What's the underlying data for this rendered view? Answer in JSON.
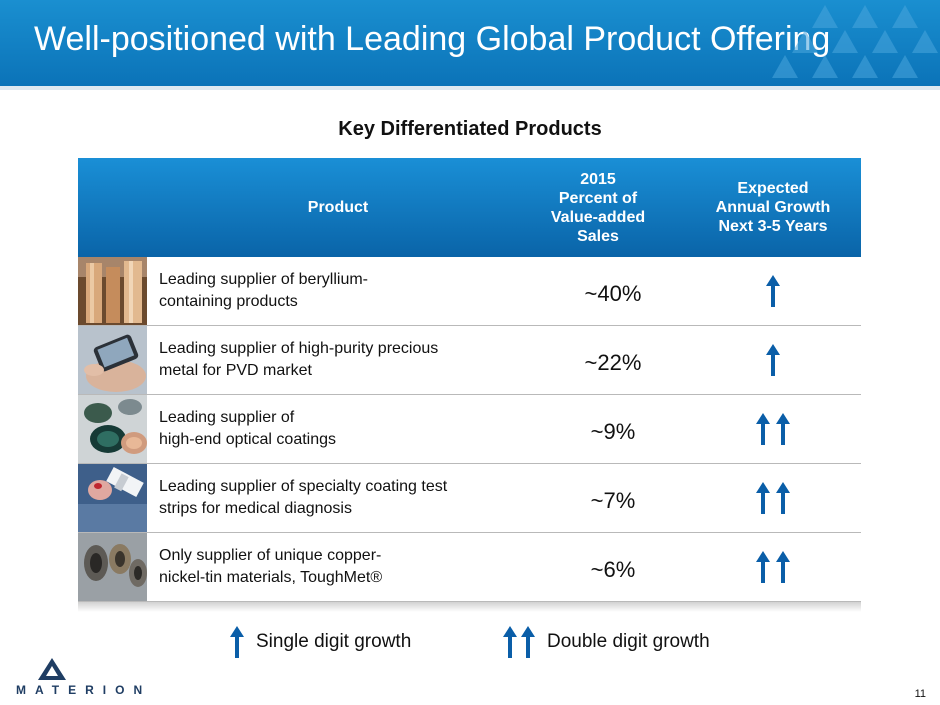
{
  "header": {
    "title": "Well-positioned with Leading Global Product Offering"
  },
  "subtitle": "Key Differentiated Products",
  "table": {
    "headers": {
      "product": "Product",
      "percent": "2015\nPercent of\nValue-added\nSales",
      "growth": "Expected\nAnnual Growth\nNext 3-5 Years"
    },
    "rows": [
      {
        "description": "Leading supplier of beryllium-\ncontaining products",
        "percent": "~40%",
        "growth": "single",
        "thumb": "beryllium-rods-image"
      },
      {
        "description": "Leading supplier of high-purity precious\nmetal for PVD market",
        "percent": "~22%",
        "growth": "single",
        "thumb": "smartphone-hand-image"
      },
      {
        "description": "Leading supplier of\nhigh-end optical coatings",
        "percent": "~9%",
        "growth": "double",
        "thumb": "optical-lenses-image"
      },
      {
        "description": "Leading supplier of specialty coating test\nstrips for medical diagnosis",
        "percent": "~7%",
        "growth": "double",
        "thumb": "test-strip-image"
      },
      {
        "description": "Only supplier of unique copper-\nnickel-tin materials, ToughMet®",
        "percent": "~6%",
        "growth": "double",
        "thumb": "bushings-image"
      }
    ]
  },
  "legend": {
    "single": "Single digit growth",
    "double": "Double digit growth"
  },
  "logo": {
    "word": "MATERION"
  },
  "page_number": "11",
  "colors": {
    "header_blue": "#0b73b8",
    "arrow_blue": "#0a5ea8",
    "logo_navy": "#1f3d63"
  }
}
